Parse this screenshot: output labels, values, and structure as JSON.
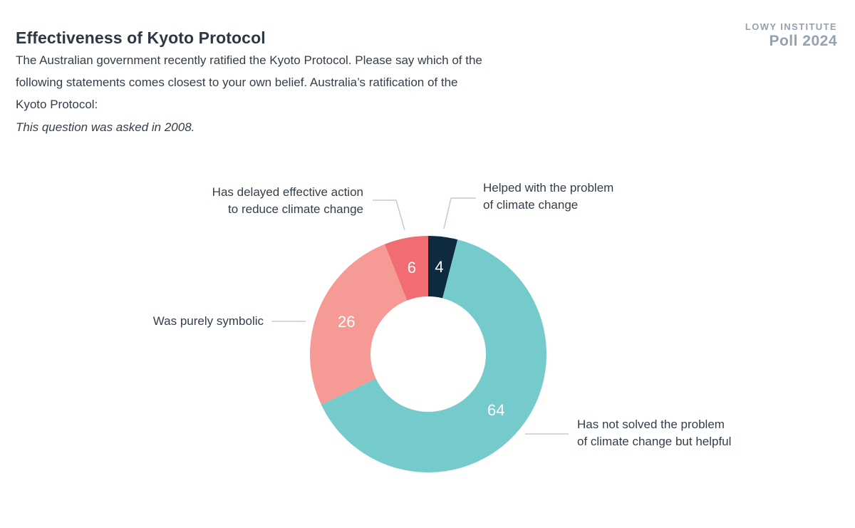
{
  "page": {
    "background": "#ffffff"
  },
  "header": {
    "title": "Effectiveness of Kyoto Protocol",
    "question_lines": [
      "The Australian government recently ratified the Kyoto Protocol. Please say which of the",
      "following statements comes closest to your own belief. Australia’s ratification of the",
      "Kyoto Protocol:"
    ],
    "note": "This question was asked in 2008."
  },
  "branding": {
    "institute": "LOWY INSTITUTE",
    "poll": "Poll 2024",
    "color": "#94a1b2"
  },
  "chart_data": {
    "type": "pie",
    "subtype": "donut",
    "title": "Effectiveness of Kyoto Protocol",
    "units": "percent",
    "start_angle_deg": 0,
    "direction": "clockwise",
    "inner_radius_ratio": 0.49,
    "total": 100,
    "segments": [
      {
        "label": "Helped with the problem of climate change",
        "value": 4,
        "color": "#0d2a3e"
      },
      {
        "label": "Has not solved the problem of climate change but helpful",
        "value": 64,
        "color": "#75cacc"
      },
      {
        "label": "Was purely symbolic",
        "value": 26,
        "color": "#f59a94"
      },
      {
        "label": "Has delayed effective action to reduce climate change",
        "value": 6,
        "color": "#f16d72"
      }
    ],
    "value_label_color": "#ffffff",
    "leader_line_color": "#c0ccd6",
    "callouts": [
      {
        "id": "helped",
        "text": "Helped with the problem\nof climate change"
      },
      {
        "id": "delayed",
        "text": "Has delayed effective action\nto reduce climate change"
      },
      {
        "id": "symbolic",
        "text": "Was purely symbolic"
      },
      {
        "id": "notsolved",
        "text": "Has not solved the problem\nof climate change but helpful"
      }
    ]
  }
}
